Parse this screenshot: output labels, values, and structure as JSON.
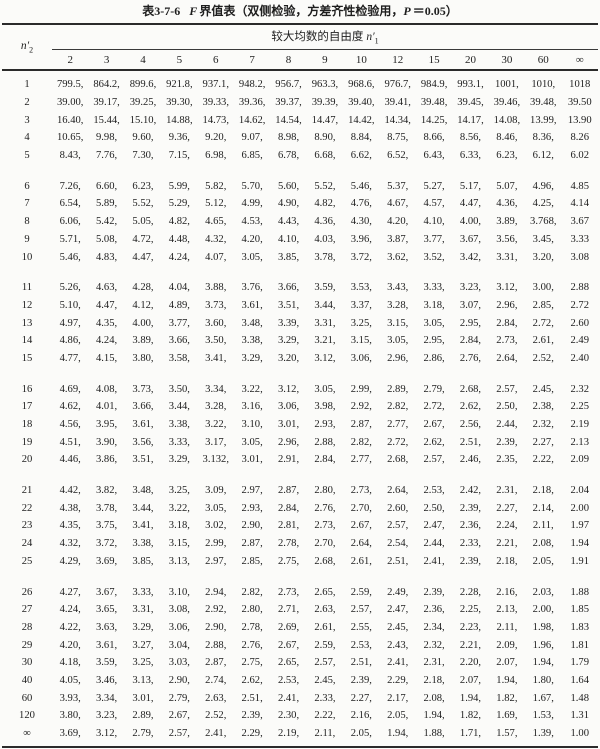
{
  "title": {
    "prefix": "表3-7-6",
    "f_var": "F",
    "name": "界值表",
    "paren": "（双侧检验，方差齐性检验用，",
    "p_var": "P",
    "p_value": "＝0.05）"
  },
  "header": {
    "row_var_base": "n′",
    "row_var_sub": "2",
    "group_label": "较大均数的自由度",
    "group_var_base": "n′",
    "group_var_sub": "1",
    "columns": [
      "2",
      "3",
      "4",
      "5",
      "6",
      "7",
      "8",
      "9",
      "10",
      "12",
      "15",
      "20",
      "30",
      "60",
      "∞"
    ]
  },
  "table": {
    "separator": ",",
    "groups": [
      {
        "rows": [
          {
            "label": "1",
            "values": [
              "799.5",
              "864.2",
              "899.6",
              "921.8",
              "937.1",
              "948.2",
              "956.7",
              "963.3",
              "968.6",
              "976.7",
              "984.9",
              "993.1",
              "1001",
              "1010",
              "1018"
            ]
          },
          {
            "label": "2",
            "values": [
              "39.00",
              "39.17",
              "39.25",
              "39.30",
              "39.33",
              "39.36",
              "39.37",
              "39.39",
              "39.40",
              "39.41",
              "39.48",
              "39.45",
              "39.46",
              "39.48",
              "39.50"
            ]
          },
          {
            "label": "3",
            "values": [
              "16.40",
              "15.44",
              "15.10",
              "14.88",
              "14.73",
              "14.62",
              "14.54",
              "14.47",
              "14.42",
              "14.34",
              "14.25",
              "14.17",
              "14.08",
              "13.99",
              "13.90"
            ]
          },
          {
            "label": "4",
            "values": [
              "10.65",
              "9.98",
              "9.60",
              "9.36",
              "9.20",
              "9.07",
              "8.98",
              "8.90",
              "8.84",
              "8.75",
              "8.66",
              "8.56",
              "8.46",
              "8.36",
              "8.26"
            ]
          },
          {
            "label": "5",
            "values": [
              "8.43",
              "7.76",
              "7.30",
              "7.15",
              "6.98",
              "6.85",
              "6.78",
              "6.68",
              "6.62",
              "6.52",
              "6.43",
              "6.33",
              "6.23",
              "6.12",
              "6.02"
            ]
          }
        ]
      },
      {
        "rows": [
          {
            "label": "6",
            "values": [
              "7.26",
              "6.60",
              "6.23",
              "5.99",
              "5.82",
              "5.70",
              "5.60",
              "5.52",
              "5.46",
              "5.37",
              "5.27",
              "5.17",
              "5.07",
              "4.96",
              "4.85"
            ]
          },
          {
            "label": "7",
            "values": [
              "6.54",
              "5.89",
              "5.52",
              "5.29",
              "5.12",
              "4.99",
              "4.90",
              "4.82",
              "4.76",
              "4.67",
              "4.57",
              "4.47",
              "4.36",
              "4.25",
              "4.14"
            ]
          },
          {
            "label": "8",
            "values": [
              "6.06",
              "5.42",
              "5.05",
              "4.82",
              "4.65",
              "4.53",
              "4.43",
              "4.36",
              "4.30",
              "4.20",
              "4.10",
              "4.00",
              "3.89",
              "3.768",
              "3.67"
            ]
          },
          {
            "label": "9",
            "values": [
              "5.71",
              "5.08",
              "4.72",
              "4.48",
              "4.32",
              "4.20",
              "4.10",
              "4.03",
              "3.96",
              "3.87",
              "3.77",
              "3.67",
              "3.56",
              "3.45",
              "3.33"
            ]
          },
          {
            "label": "10",
            "values": [
              "5.46",
              "4.83",
              "4.47",
              "4.24",
              "4.07",
              "3.05",
              "3.85",
              "3.78",
              "3.72",
              "3.62",
              "3.52",
              "3.42",
              "3.31",
              "3.20",
              "3.08"
            ]
          }
        ]
      },
      {
        "rows": [
          {
            "label": "11",
            "values": [
              "5.26",
              "4.63",
              "4.28",
              "4.04",
              "3.88",
              "3.76",
              "3.66",
              "3.59",
              "3.53",
              "3.43",
              "3.33",
              "3.23",
              "3.12",
              "3.00",
              "2.88"
            ]
          },
          {
            "label": "12",
            "values": [
              "5.10",
              "4.47",
              "4.12",
              "4.89",
              "3.73",
              "3.61",
              "3.51",
              "3.44",
              "3.37",
              "3.28",
              "3.18",
              "3.07",
              "2.96",
              "2.85",
              "2.72"
            ]
          },
          {
            "label": "13",
            "values": [
              "4.97",
              "4.35",
              "4.00",
              "3.77",
              "3.60",
              "3.48",
              "3.39",
              "3.31",
              "3.25",
              "3.15",
              "3.05",
              "2.95",
              "2.84",
              "2.72",
              "2.60"
            ]
          },
          {
            "label": "14",
            "values": [
              "4.86",
              "4.24",
              "3.89",
              "3.66",
              "3.50",
              "3.38",
              "3.29",
              "3.21",
              "3.15",
              "3.05",
              "2.95",
              "2.84",
              "2.73",
              "2.61",
              "2.49"
            ]
          },
          {
            "label": "15",
            "values": [
              "4.77",
              "4.15",
              "3.80",
              "3.58",
              "3.41",
              "3.29",
              "3.20",
              "3.12",
              "3.06",
              "2.96",
              "2.86",
              "2.76",
              "2.64",
              "2.52",
              "2.40"
            ]
          }
        ]
      },
      {
        "rows": [
          {
            "label": "16",
            "values": [
              "4.69",
              "4.08",
              "3.73",
              "3.50",
              "3.34",
              "3.22",
              "3.12",
              "3.05",
              "2.99",
              "2.89",
              "2.79",
              "2.68",
              "2.57",
              "2.45",
              "2.32"
            ]
          },
          {
            "label": "17",
            "values": [
              "4.62",
              "4.01",
              "3.66",
              "3.44",
              "3.28",
              "3.16",
              "3.06",
              "3.98",
              "2.92",
              "2.82",
              "2.72",
              "2.62",
              "2.50",
              "2.38",
              "2.25"
            ]
          },
          {
            "label": "18",
            "values": [
              "4.56",
              "3.95",
              "3.61",
              "3.38",
              "3.22",
              "3.10",
              "3.01",
              "2.93",
              "2.87",
              "2.77",
              "2.67",
              "2.56",
              "2.44",
              "2.32",
              "2.19"
            ]
          },
          {
            "label": "19",
            "values": [
              "4.51",
              "3.90",
              "3.56",
              "3.33",
              "3.17",
              "3.05",
              "2.96",
              "2.88",
              "2.82",
              "2.72",
              "2.62",
              "2.51",
              "2.39",
              "2.27",
              "2.13"
            ]
          },
          {
            "label": "20",
            "values": [
              "4.46",
              "3.86",
              "3.51",
              "3.29",
              "3.132",
              "3.01",
              "2.91",
              "2.84",
              "2.77",
              "2.68",
              "2.57",
              "2.46",
              "2.35",
              "2.22",
              "2.09"
            ]
          }
        ]
      },
      {
        "rows": [
          {
            "label": "21",
            "values": [
              "4.42",
              "3.82",
              "3.48",
              "3.25",
              "3.09",
              "2.97",
              "2.87",
              "2.80",
              "2.73",
              "2.64",
              "2.53",
              "2.42",
              "2.31",
              "2.18",
              "2.04"
            ]
          },
          {
            "label": "22",
            "values": [
              "4.38",
              "3.78",
              "3.44",
              "3.22",
              "3.05",
              "2.93",
              "2.84",
              "2.76",
              "2.70",
              "2.60",
              "2.50",
              "2.39",
              "2.27",
              "2.14",
              "2.00"
            ]
          },
          {
            "label": "23",
            "values": [
              "4.35",
              "3.75",
              "3.41",
              "3.18",
              "3.02",
              "2.90",
              "2.81",
              "2.73",
              "2.67",
              "2.57",
              "2.47",
              "2.36",
              "2.24",
              "2.11",
              "1.97"
            ]
          },
          {
            "label": "24",
            "values": [
              "4.32",
              "3.72",
              "3.38",
              "3.15",
              "2.99",
              "2.87",
              "2.78",
              "2.70",
              "2.64",
              "2.54",
              "2.44",
              "2.33",
              "2.21",
              "2.08",
              "1.94"
            ]
          },
          {
            "label": "25",
            "values": [
              "4.29",
              "3.69",
              "3.85",
              "3.13",
              "2.97",
              "2.85",
              "2.75",
              "2.68",
              "2.61",
              "2.51",
              "2.41",
              "2.39",
              "2.18",
              "2.05",
              "1.91"
            ]
          }
        ]
      },
      {
        "rows": [
          {
            "label": "26",
            "values": [
              "4.27",
              "3.67",
              "3.33",
              "3.10",
              "2.94",
              "2.82",
              "2.73",
              "2.65",
              "2.59",
              "2.49",
              "2.39",
              "2.28",
              "2.16",
              "2.03",
              "1.88"
            ]
          },
          {
            "label": "27",
            "values": [
              "4.24",
              "3.65",
              "3.31",
              "3.08",
              "2.92",
              "2.80",
              "2.71",
              "2.63",
              "2.57",
              "2.47",
              "2.36",
              "2.25",
              "2.13",
              "2.00",
              "1.85"
            ]
          },
          {
            "label": "28",
            "values": [
              "4.22",
              "3.63",
              "3.29",
              "3.06",
              "2.90",
              "2.78",
              "2.69",
              "2.61",
              "2.55",
              "2.45",
              "2.34",
              "2.23",
              "2.11",
              "1.98",
              "1.83"
            ]
          },
          {
            "label": "29",
            "values": [
              "4.20",
              "3.61",
              "3.27",
              "3.04",
              "2.88",
              "2.76",
              "2.67",
              "2.59",
              "2.53",
              "2.43",
              "2.32",
              "2.21",
              "2.09",
              "1.96",
              "1.81"
            ]
          },
          {
            "label": "30",
            "values": [
              "4.18",
              "3.59",
              "3.25",
              "3.03",
              "2.87",
              "2.75",
              "2.65",
              "2.57",
              "2.51",
              "2.41",
              "2.31",
              "2.20",
              "2.07",
              "1.94",
              "1.79"
            ]
          },
          {
            "label": "40",
            "values": [
              "4.05",
              "3.46",
              "3.13",
              "2.90",
              "2.74",
              "2.62",
              "2.53",
              "2.45",
              "2.39",
              "2.29",
              "2.18",
              "2.07",
              "1.94",
              "1.80",
              "1.64"
            ]
          },
          {
            "label": "60",
            "values": [
              "3.93",
              "3.34",
              "3.01",
              "2.79",
              "2.63",
              "2.51",
              "2.41",
              "2.33",
              "2.27",
              "2.17",
              "2.08",
              "1.94",
              "1.82",
              "1.67",
              "1.48"
            ]
          },
          {
            "label": "120",
            "values": [
              "3.80",
              "3.23",
              "2.89",
              "2.67",
              "2.52",
              "2.39",
              "2.30",
              "2.22",
              "2.16",
              "2.05",
              "1.94",
              "1.82",
              "1.69",
              "1.53",
              "1.31"
            ]
          },
          {
            "label": "∞",
            "values": [
              "3.69",
              "3.12",
              "2.79",
              "2.57",
              "2.41",
              "2.29",
              "2.19",
              "2.11",
              "2.05",
              "1.94",
              "1.88",
              "1.71",
              "1.57",
              "1.39",
              "1.00"
            ]
          }
        ]
      }
    ]
  }
}
